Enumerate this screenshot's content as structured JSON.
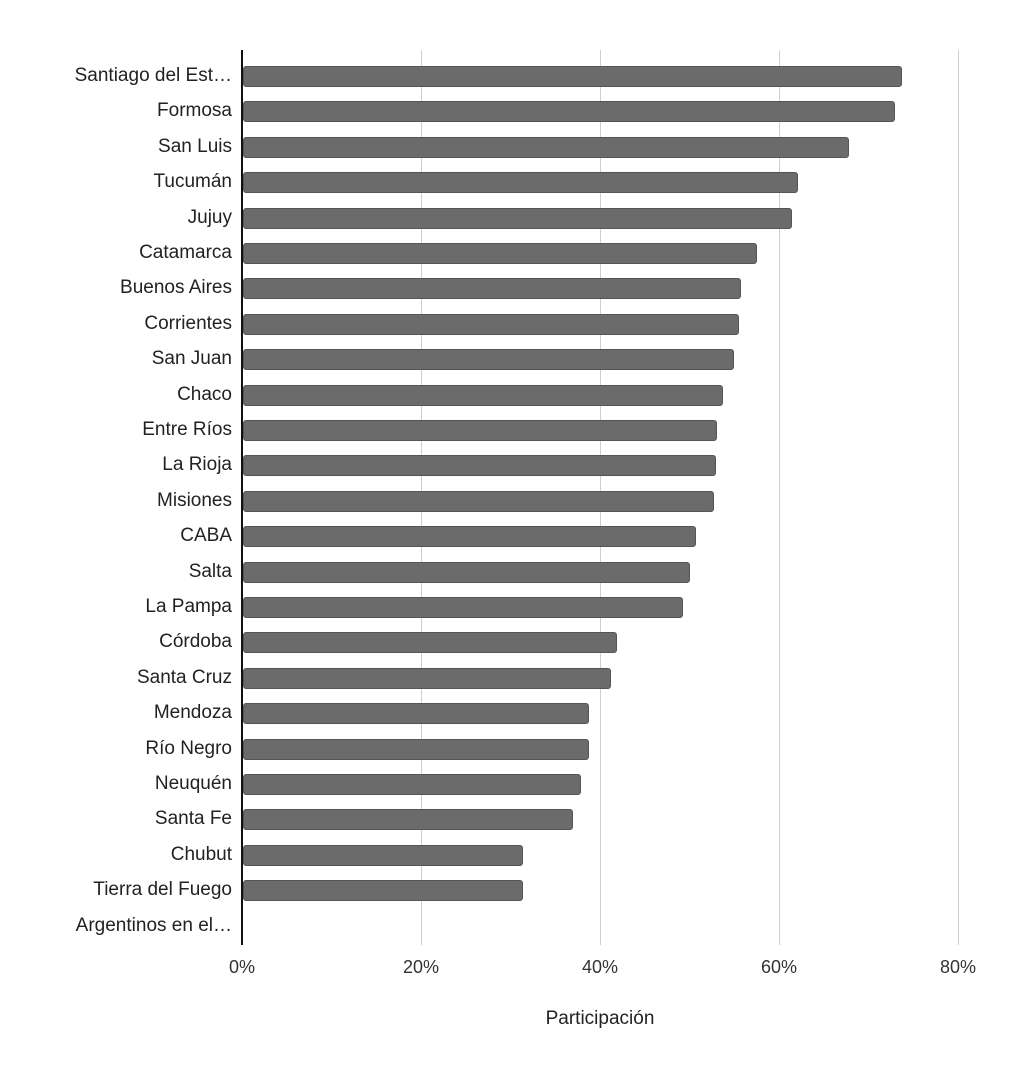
{
  "chart_data": {
    "type": "bar",
    "orientation": "horizontal",
    "title": "",
    "xlabel": "Participación",
    "ylabel": "",
    "xlim": [
      0,
      80
    ],
    "x_ticks": [
      "0%",
      "20%",
      "40%",
      "60%",
      "80%"
    ],
    "grid": true,
    "legend": null,
    "bar_color": "#6b6b6b",
    "categories": [
      "Santiago del Est…",
      "Formosa",
      "San Luis",
      "Tucumán",
      "Jujuy",
      "Catamarca",
      "Buenos Aires",
      "Corrientes",
      "San Juan",
      "Chaco",
      "Entre Ríos",
      "La Rioja",
      "Misiones",
      "CABA",
      "Salta",
      "La Pampa",
      "Córdoba",
      "Santa Cruz",
      "Mendoza",
      "Río Negro",
      "Neuquén",
      "Santa Fe",
      "Chubut",
      "Tierra del Fuego",
      "Argentinos en el…"
    ],
    "values": [
      73.6,
      72.8,
      67.7,
      62.0,
      61.3,
      57.4,
      55.6,
      55.4,
      54.9,
      53.6,
      53.0,
      52.8,
      52.6,
      50.6,
      49.9,
      49.2,
      41.8,
      41.1,
      38.7,
      38.7,
      37.8,
      36.9,
      31.3,
      31.3,
      0
    ]
  }
}
